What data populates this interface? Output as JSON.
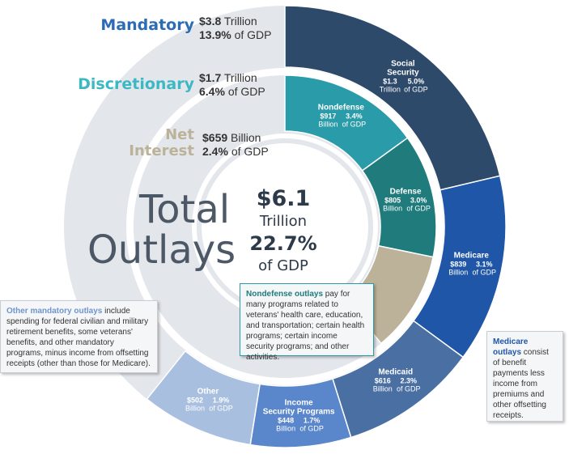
{
  "categories": [
    {
      "key": "mandatory",
      "name": "Mandatory",
      "amount": "$3.8",
      "unit": "Trillion",
      "gdp_pct": "13.9%",
      "gdp_label": "of GDP",
      "color": "#2b6cb5"
    },
    {
      "key": "discretionary",
      "name": "Discretionary",
      "amount": "$1.7",
      "unit": "Trillion",
      "gdp_pct": "6.4%",
      "gdp_label": "of GDP",
      "color": "#3bb8c4"
    },
    {
      "key": "net_interest",
      "name_line1": "Net",
      "name_line2": "Interest",
      "amount": "$659",
      "unit": "Billion",
      "gdp_pct": "2.4%",
      "gdp_label": "of GDP",
      "color": "#bcb29a"
    }
  ],
  "total": {
    "word1": "Total",
    "word2": "Outlays",
    "amount": "$6.1",
    "unit": "Trillion",
    "gdp_pct": "22.7%",
    "gdp_label": "of GDP"
  },
  "chart_data": {
    "type": "pie",
    "title": "Total Outlays",
    "total": {
      "value": 6.1,
      "unit": "Trillion",
      "gdp_pct": 22.7
    },
    "inner_ring": [
      {
        "name": "Nondefense",
        "label_lines": [
          "Nondefense"
        ],
        "amount_lines": [
          "$917",
          "Billion"
        ],
        "gdp_lines": [
          "3.4%",
          "of GDP"
        ],
        "value_billion": 917,
        "gdp_pct": 3.4,
        "group": "Discretionary",
        "color": "#2a9ba8"
      },
      {
        "name": "Defense",
        "label_lines": [
          "Defense"
        ],
        "amount_lines": [
          "$805",
          "Billion"
        ],
        "gdp_lines": [
          "3.0%",
          "of GDP"
        ],
        "value_billion": 805,
        "gdp_pct": 3.0,
        "group": "Discretionary",
        "color": "#1f7b7c"
      },
      {
        "name": "Net Interest",
        "label_lines": [],
        "amount_lines": [],
        "gdp_lines": [],
        "value_billion": 659,
        "gdp_pct": 2.4,
        "group": "Net Interest",
        "color": "#bcb29a"
      }
    ],
    "outer_ring": [
      {
        "name": "Social Security",
        "label_lines": [
          "Social",
          "Security"
        ],
        "amount_lines": [
          "$1.3",
          "Trillion"
        ],
        "gdp_lines": [
          "5.0%",
          "of GDP"
        ],
        "value_billion": 1300,
        "gdp_pct": 5.0,
        "color": "#2e4a6b"
      },
      {
        "name": "Medicare",
        "label_lines": [
          "Medicare"
        ],
        "amount_lines": [
          "$839",
          "Billion"
        ],
        "gdp_lines": [
          "3.1%",
          "of GDP"
        ],
        "value_billion": 839,
        "gdp_pct": 3.1,
        "color": "#1f56a8"
      },
      {
        "name": "Medicaid",
        "label_lines": [
          "Medicaid"
        ],
        "amount_lines": [
          "$616",
          "Billion"
        ],
        "gdp_lines": [
          "2.3%",
          "of GDP"
        ],
        "value_billion": 616,
        "gdp_pct": 2.3,
        "color": "#4a6fa3"
      },
      {
        "name": "Income Security Programs",
        "label_lines": [
          "Income",
          "Security Programs"
        ],
        "amount_lines": [
          "$448",
          "Billion"
        ],
        "gdp_lines": [
          "1.7%",
          "of GDP"
        ],
        "value_billion": 448,
        "gdp_pct": 1.7,
        "color": "#5a86cc"
      },
      {
        "name": "Other",
        "label_lines": [
          "Other"
        ],
        "amount_lines": [
          "$502",
          "Billion"
        ],
        "gdp_lines": [
          "1.9%",
          "of GDP"
        ],
        "value_billion": 502,
        "gdp_pct": 1.9,
        "color": "#a9bfe0"
      }
    ],
    "background_ring_color": "#e3e6ea"
  },
  "notes": {
    "nondefense": {
      "lead": "Nondefense outlays",
      "text": " pay for many programs related to veterans' health care, education, and transportation; certain health programs; certain income security programs; and other activities."
    },
    "medicare": {
      "lead": "Medicare outlays",
      "text": " consist of benefit payments less income from premiums and other offsetting receipts."
    },
    "other_mandatory": {
      "lead": "Other mandatory outlays",
      "text": " include spending for federal civilian and military retirement benefits, some veterans' benefits, and other mandatory programs, minus income from offsetting receipts (other than those for Medicare)."
    }
  }
}
